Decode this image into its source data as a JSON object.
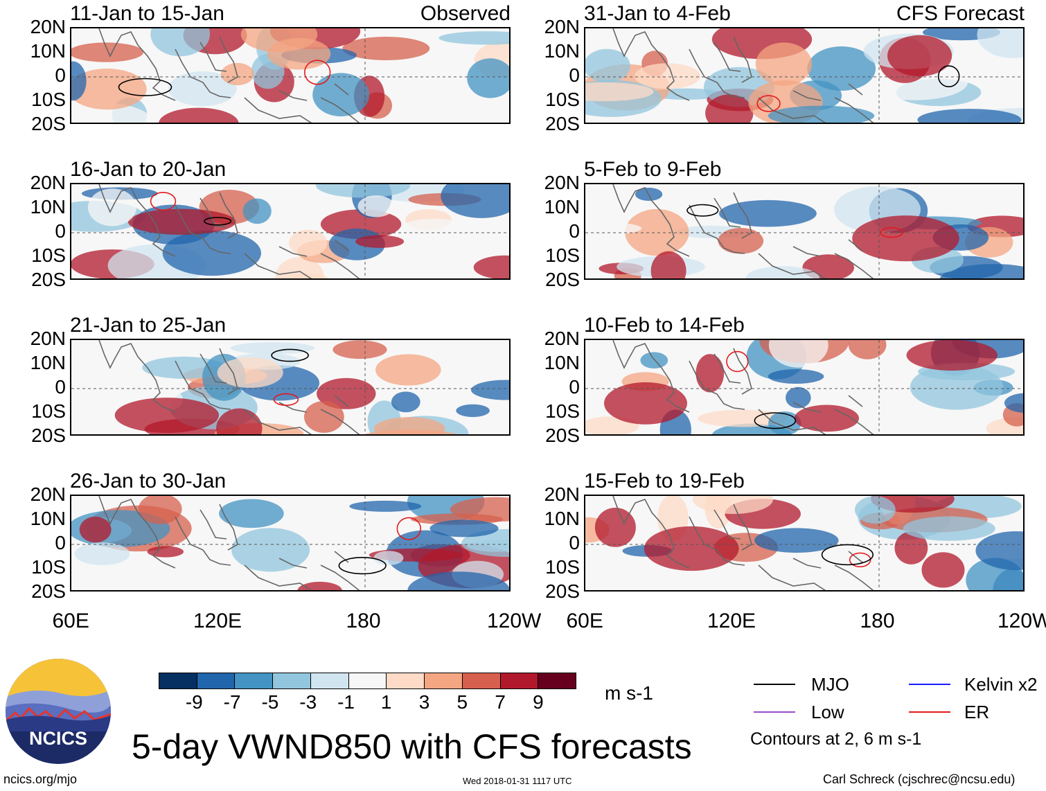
{
  "panels": [
    {
      "title": "11-Jan to 15-Jan",
      "tag": "Observed",
      "col": 0,
      "row": 0
    },
    {
      "title": "16-Jan to 20-Jan",
      "tag": "",
      "col": 0,
      "row": 1
    },
    {
      "title": "21-Jan to 25-Jan",
      "tag": "",
      "col": 0,
      "row": 2
    },
    {
      "title": "26-Jan to 30-Jan",
      "tag": "",
      "col": 0,
      "row": 3
    },
    {
      "title": "31-Jan to 4-Feb",
      "tag": "CFS Forecast",
      "col": 1,
      "row": 0
    },
    {
      "title": "5-Feb to 9-Feb",
      "tag": "",
      "col": 1,
      "row": 1
    },
    {
      "title": "10-Feb to 14-Feb",
      "tag": "",
      "col": 1,
      "row": 2
    },
    {
      "title": "15-Feb to 19-Feb",
      "tag": "",
      "col": 1,
      "row": 3
    }
  ],
  "y_ticks": [
    "20N",
    "10N",
    "0",
    "10S",
    "20S"
  ],
  "x_ticks": [
    "60E",
    "120E",
    "180",
    "120W"
  ],
  "colorbar": {
    "labels": [
      "-9",
      "-7",
      "-5",
      "-3",
      "-1",
      "1",
      "3",
      "5",
      "7",
      "9"
    ],
    "colors": [
      "#053061",
      "#2166ac",
      "#4393c3",
      "#92c5de",
      "#d1e5f0",
      "#f7f7f7",
      "#fddbc7",
      "#f4a582",
      "#d6604d",
      "#b2182b",
      "#67001f"
    ],
    "units": "m s-1"
  },
  "legend": {
    "mjo": "MJO",
    "kelvin": "Kelvin x2",
    "low": "Low",
    "er": "ER",
    "contours": "Contours at 2, 6 m s-1",
    "colors": {
      "mjo": "#000000",
      "kelvin": "#1a1aff",
      "low": "#9b4dca",
      "er": "#e31a1c"
    }
  },
  "title": "5-day VWND850 with CFS forecasts",
  "logo_text": "NCICS",
  "footer": {
    "url": "ncics.org/mjo",
    "timestamp": "Wed 2018-01-31 1117 UTC",
    "author": "Carl Schreck (cjschrec@ncsu.edu)"
  }
}
